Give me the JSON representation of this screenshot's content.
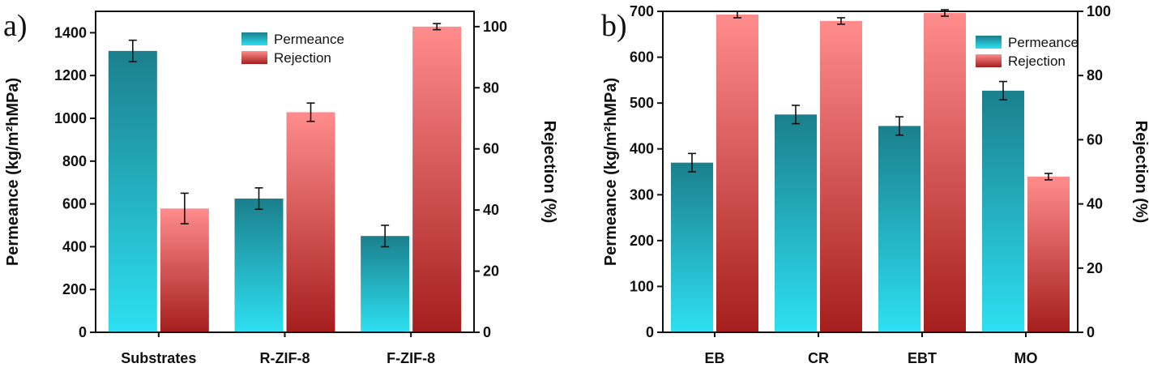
{
  "chart_data": [
    {
      "panel_label": "a)",
      "type": "bar",
      "categories": [
        "Substrates",
        "R-ZIF-8",
        "F-ZIF-8"
      ],
      "series": [
        {
          "name": "Permeance",
          "axis": "left",
          "values": [
            1315,
            625,
            450
          ],
          "errors": [
            50,
            50,
            50
          ],
          "color_top": "#1b7f8c",
          "color_bottom": "#2de0f2"
        },
        {
          "name": "Rejection",
          "axis": "right",
          "values": [
            40.5,
            72.0,
            100.0
          ],
          "errors": [
            5.0,
            3.0,
            1.0
          ],
          "color_top": "#ff8c8c",
          "color_bottom": "#a51e1e"
        }
      ],
      "ylabel_left": "Permeance (kg/m²hMPa)",
      "ylabel_right": "Rejection (%)",
      "ylim_left": [
        0,
        1500
      ],
      "ylim_right": [
        0,
        105
      ],
      "yticks_left": [
        "0",
        "200",
        "400",
        "600",
        "800",
        "1000",
        "1200",
        "1400"
      ],
      "yticks_right": [
        "0",
        "20",
        "40",
        "60",
        "80",
        "100"
      ],
      "legend": "top-center",
      "grid": false
    },
    {
      "panel_label": "b)",
      "type": "bar",
      "categories": [
        "EB",
        "CR",
        "EBT",
        "MO"
      ],
      "series": [
        {
          "name": "Permeance",
          "axis": "left",
          "values": [
            370,
            475,
            450,
            527
          ],
          "errors": [
            20,
            20,
            20,
            20
          ],
          "color_top": "#1b7f8c",
          "color_bottom": "#2de0f2"
        },
        {
          "name": "Rejection",
          "axis": "right",
          "values": [
            99.0,
            97.0,
            99.5,
            48.5
          ],
          "errors": [
            1.0,
            1.0,
            1.0,
            1.0
          ],
          "color_top": "#ff8c8c",
          "color_bottom": "#a51e1e"
        }
      ],
      "ylabel_left": "Permeance (kg/m²hMPa)",
      "ylabel_right": "Rejection (%)",
      "ylim_left": [
        0,
        700
      ],
      "ylim_right": [
        0,
        100
      ],
      "yticks_left": [
        "0",
        "100",
        "200",
        "300",
        "400",
        "500",
        "600",
        "700"
      ],
      "yticks_right": [
        "0",
        "20",
        "40",
        "60",
        "80",
        "100"
      ],
      "legend": "top-right",
      "grid": false
    }
  ]
}
